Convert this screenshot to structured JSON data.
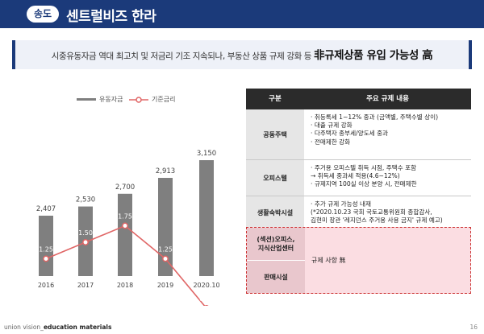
{
  "header": {
    "badge": "송도",
    "title": "센트럴비즈 한라"
  },
  "banner": {
    "normal": "시중유동자금 역대 최고치 및 저금리 기조 지속되나, 부동산 상품 규제 강화 등 ",
    "strong": "非규제상품 유입 가능성 高"
  },
  "chart_data": {
    "type": "bar",
    "categories": [
      "2016",
      "2017",
      "2018",
      "2019",
      "2020.10"
    ],
    "series": [
      {
        "name": "유동자금",
        "type": "bar",
        "values": [
          2407,
          2530,
          2700,
          2913,
          3150
        ],
        "labels": [
          "2,407",
          "2,530",
          "2,700",
          "2,913",
          "3,150"
        ]
      },
      {
        "name": "기준금리",
        "type": "line",
        "values": [
          1.25,
          1.5,
          1.75,
          1.25,
          0.5
        ],
        "labels": [
          "1.25",
          "1.50",
          "1.75",
          "1.25",
          "0.50"
        ]
      }
    ],
    "colors": {
      "bar": "#7f7f7f",
      "line": "#e06666"
    }
  },
  "table": {
    "headers": [
      "구분",
      "주요 규제 내용"
    ],
    "rows": [
      {
        "cat": "공동주택",
        "lines": [
          "· 취등록세 1~12% 중과 (금액별, 주택수별 상이)",
          "· 대출 규제 강화",
          "· 다주택자 종부세/양도세 중과",
          "· 전매제한 강화"
        ]
      },
      {
        "cat": "오피스텔",
        "lines": [
          "· 주거용 오피스텔 취득 시점, 주택수 포함",
          "   → 취득세 중과세 적용(4.6~12%)",
          "· 규제지역 100실 이상 분양 시, 전매제한"
        ]
      },
      {
        "cat": "생활숙박시설",
        "lines": [
          "· 추가 규제 가능성 내재",
          "(*2020.10.23 국회 국토교통위원회 종합감사,",
          "김현미 장관 '레지던스 주거용 사용 금지' 규제 예고)"
        ]
      }
    ],
    "highlight": {
      "cats": [
        "(섹션)오피스,\n지식산업센터",
        "판매시설"
      ],
      "text": "규제 사항 無"
    }
  },
  "footer": {
    "prefix": "union vision_",
    "bold": "education materials",
    "page": "16"
  }
}
